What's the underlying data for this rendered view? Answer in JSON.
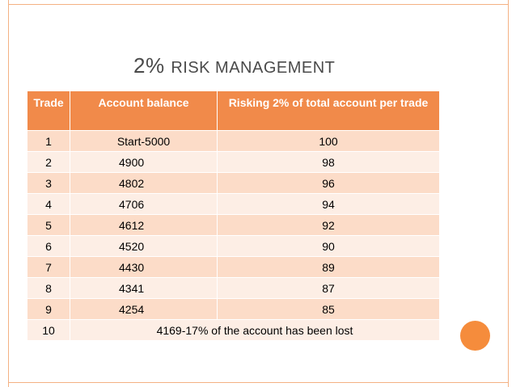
{
  "title": {
    "percent": "2%",
    "text": "RISK MANAGEMENT"
  },
  "table": {
    "headers": [
      "Trade",
      "Account balance",
      "Risking 2% of total account per trade"
    ],
    "rows": [
      {
        "trade": "1",
        "balance": "Start-5000",
        "risk": "100"
      },
      {
        "trade": "2",
        "balance": "4900",
        "risk": "98"
      },
      {
        "trade": "3",
        "balance": "4802",
        "risk": "96"
      },
      {
        "trade": "4",
        "balance": "4706",
        "risk": "94"
      },
      {
        "trade": "5",
        "balance": "4612",
        "risk": "92"
      },
      {
        "trade": "6",
        "balance": "4520",
        "risk": "90"
      },
      {
        "trade": "7",
        "balance": "4430",
        "risk": "89"
      },
      {
        "trade": "8",
        "balance": "4341",
        "risk": "87"
      },
      {
        "trade": "9",
        "balance": "4254",
        "risk": "85"
      }
    ],
    "last_row": {
      "trade": "10",
      "summary": "4169-17% of the account has been lost"
    }
  },
  "colors": {
    "header": "#f18a4a",
    "row_dark": "#fcdcc8",
    "row_light": "#fdeee5",
    "accent_circle": "#f58c3c",
    "frame": "#f4b183"
  }
}
